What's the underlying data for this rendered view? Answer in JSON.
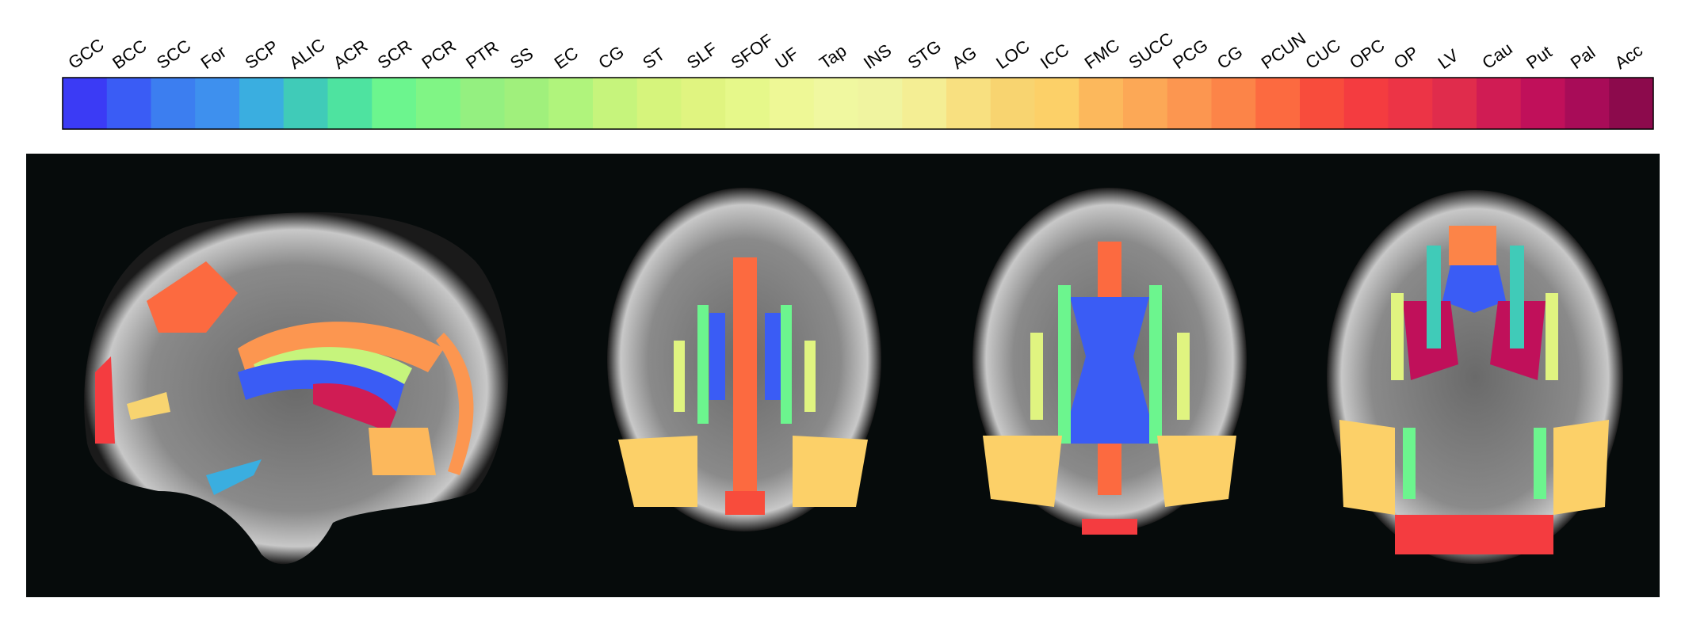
{
  "legend": {
    "items": [
      {
        "label": "GCC",
        "color": "#3b3bf5"
      },
      {
        "label": "BCC",
        "color": "#3a5cf5"
      },
      {
        "label": "SCC",
        "color": "#3c7ef0"
      },
      {
        "label": "For",
        "color": "#3e90ee"
      },
      {
        "label": "SCP",
        "color": "#3aaee0"
      },
      {
        "label": "ALIC",
        "color": "#40cbb8"
      },
      {
        "label": "ACR",
        "color": "#4ee3a0"
      },
      {
        "label": "SCR",
        "color": "#6cf58e"
      },
      {
        "label": "PCR",
        "color": "#80f585"
      },
      {
        "label": "PTR",
        "color": "#94f080"
      },
      {
        "label": "SS",
        "color": "#a0f07c"
      },
      {
        "label": "EC",
        "color": "#b0f47c"
      },
      {
        "label": "CG",
        "color": "#c6f47c"
      },
      {
        "label": "ST",
        "color": "#d6f47c"
      },
      {
        "label": "SLF",
        "color": "#e0f480"
      },
      {
        "label": "SFOF",
        "color": "#e6f88a"
      },
      {
        "label": "UF",
        "color": "#eef896"
      },
      {
        "label": "Tap",
        "color": "#f0f8a0"
      },
      {
        "label": "INS",
        "color": "#f0f4a0"
      },
      {
        "label": "STG",
        "color": "#f4ee94"
      },
      {
        "label": "AG",
        "color": "#f8e080"
      },
      {
        "label": "LOC",
        "color": "#f8d470"
      },
      {
        "label": "ICC",
        "color": "#fcd068"
      },
      {
        "label": "FMC",
        "color": "#fcb85c"
      },
      {
        "label": "SUCC",
        "color": "#fca856"
      },
      {
        "label": "PCG",
        "color": "#fc9650"
      },
      {
        "label": "CG",
        "color": "#fc8448"
      },
      {
        "label": "PCUN",
        "color": "#fc6a40"
      },
      {
        "label": "CUC",
        "color": "#f84c3c"
      },
      {
        "label": "OPC",
        "color": "#f43c40"
      },
      {
        "label": "OP",
        "color": "#ec3446"
      },
      {
        "label": "LV",
        "color": "#e02c4c"
      },
      {
        "label": "Cau",
        "color": "#d01c54"
      },
      {
        "label": "Put",
        "color": "#c0105a"
      },
      {
        "label": "Pal",
        "color": "#a80c58"
      },
      {
        "label": "Acc",
        "color": "#8c0a4c"
      }
    ]
  }
}
